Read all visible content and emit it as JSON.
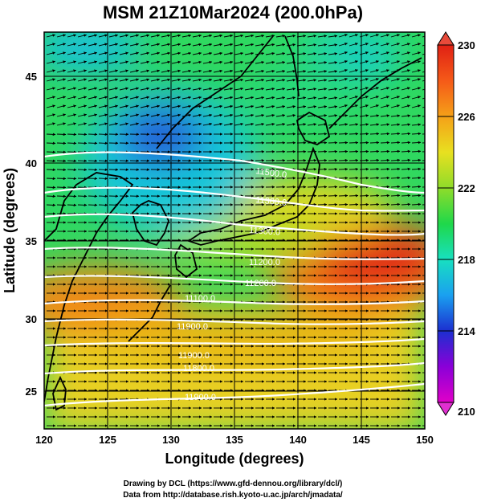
{
  "title": "MSM 21Z10Mar2024 (200.0hPa)",
  "xlabel": "Longitude (degrees)",
  "ylabel": "Latitude  (degrees)",
  "x_ticks": [
    "120",
    "125",
    "130",
    "135",
    "140",
    "145",
    "150"
  ],
  "y_ticks": [
    "25",
    "30",
    "35",
    "40",
    "45"
  ],
  "colorbar_labels": [
    "230",
    "226",
    "222",
    "218",
    "214",
    "210"
  ],
  "credits": {
    "line1": "Drawing by DCL (https://www.gfd-dennou.org/library/dcl/)",
    "line2": "Data from http://database.rish.kyoto-u.ac.jp/arch/jmadata/"
  },
  "contour_labels": [
    "11500.0",
    "11300.0",
    "11300.0",
    "11200.0",
    "11200.0",
    "11100.0",
    "11900.0",
    "11900.0",
    "11800.0",
    "11900.0"
  ],
  "chart_data": {
    "type": "heatmap",
    "title": "MSM 21Z10Mar2024 (200.0hPa)",
    "xlabel": "Longitude (degrees)",
    "ylabel": "Latitude  (degrees)",
    "xlim": [
      120,
      150
    ],
    "ylim": [
      22.4,
      47.6
    ],
    "x_ticks": [
      120,
      125,
      130,
      135,
      140,
      145,
      150
    ],
    "y_ticks": [
      25,
      30,
      35,
      40,
      45
    ],
    "colorbar": {
      "min": 210,
      "max": 230,
      "labels": [
        210,
        214,
        218,
        222,
        226,
        230
      ]
    },
    "grid": true,
    "overlays": [
      "wind vectors",
      "geopotential height contours",
      "coastlines"
    ],
    "colors": {
      "scale": [
        "#e000c8",
        "#8a00d8",
        "#1c2fd0",
        "#1aa0f0",
        "#18e0c0",
        "#1fd84a",
        "#8fdc2a",
        "#e8e020",
        "#f5a018",
        "#f55a18",
        "#e02014"
      ],
      "contour": "#ffffff",
      "vector": "#000000"
    }
  }
}
